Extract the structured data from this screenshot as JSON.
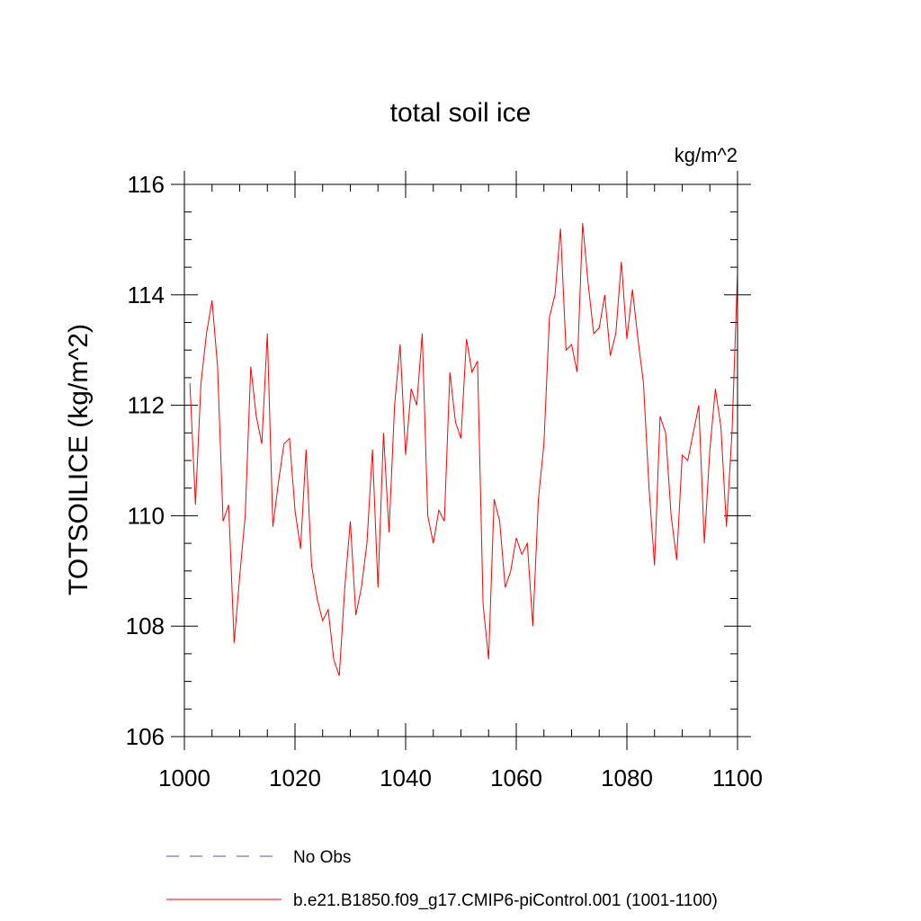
{
  "chart_data": {
    "type": "line",
    "title": "total soil ice",
    "units": "kg/m^2",
    "ylabel": "TOTSOILICE  (kg/m^2)",
    "xlabel": "",
    "xlim": [
      1000,
      1100
    ],
    "ylim": [
      106,
      116
    ],
    "x_ticks": [
      1000,
      1020,
      1040,
      1060,
      1080,
      1100
    ],
    "y_ticks": [
      106,
      108,
      110,
      112,
      114,
      116
    ],
    "grid": false,
    "legend_position": "bottom",
    "series": [
      {
        "name": "No Obs",
        "color": "#5555aa",
        "dash": "dashed",
        "x": [],
        "y": []
      },
      {
        "name": "b.e21.B1850.f09_g17.CMIP6-piControl.001 (1001-1100)",
        "color": "#ff0000",
        "dash": "solid",
        "x": [
          1001,
          1002,
          1003,
          1004,
          1005,
          1006,
          1007,
          1008,
          1009,
          1010,
          1011,
          1012,
          1013,
          1014,
          1015,
          1016,
          1017,
          1018,
          1019,
          1020,
          1021,
          1022,
          1023,
          1024,
          1025,
          1026,
          1027,
          1028,
          1029,
          1030,
          1031,
          1032,
          1033,
          1034,
          1035,
          1036,
          1037,
          1038,
          1039,
          1040,
          1041,
          1042,
          1043,
          1044,
          1045,
          1046,
          1047,
          1048,
          1049,
          1050,
          1051,
          1052,
          1053,
          1054,
          1055,
          1056,
          1057,
          1058,
          1059,
          1060,
          1061,
          1062,
          1063,
          1064,
          1065,
          1066,
          1067,
          1068,
          1069,
          1070,
          1071,
          1072,
          1073,
          1074,
          1075,
          1076,
          1077,
          1078,
          1079,
          1080,
          1081,
          1082,
          1083,
          1084,
          1085,
          1086,
          1087,
          1088,
          1089,
          1090,
          1091,
          1092,
          1093,
          1094,
          1095,
          1096,
          1097,
          1098,
          1099,
          1100
        ],
        "y": [
          112.4,
          110.2,
          112.4,
          113.3,
          113.9,
          112.7,
          109.9,
          110.2,
          107.7,
          108.9,
          110.0,
          112.7,
          111.8,
          111.3,
          113.3,
          109.8,
          110.6,
          111.3,
          111.4,
          110.1,
          109.4,
          111.2,
          109.1,
          108.5,
          108.1,
          108.3,
          107.4,
          107.1,
          108.7,
          109.9,
          108.2,
          108.7,
          109.5,
          111.2,
          108.7,
          111.5,
          109.7,
          112.0,
          113.1,
          111.1,
          112.3,
          112.0,
          113.3,
          110.0,
          109.5,
          110.1,
          109.9,
          112.6,
          111.7,
          111.4,
          113.2,
          112.6,
          112.8,
          108.4,
          107.4,
          110.3,
          109.9,
          108.7,
          109.0,
          109.6,
          109.3,
          109.5,
          108.0,
          110.3,
          111.3,
          113.6,
          114.0,
          115.2,
          113.0,
          113.1,
          112.6,
          115.3,
          114.2,
          113.3,
          113.4,
          114.0,
          112.9,
          113.3,
          114.6,
          113.2,
          114.1,
          113.2,
          112.4,
          110.5,
          109.1,
          111.8,
          111.5,
          110.0,
          109.2,
          111.1,
          111.0,
          111.5,
          112.0,
          109.5,
          111.2,
          112.3,
          111.6,
          109.8,
          111.5,
          114.4
        ]
      }
    ]
  }
}
